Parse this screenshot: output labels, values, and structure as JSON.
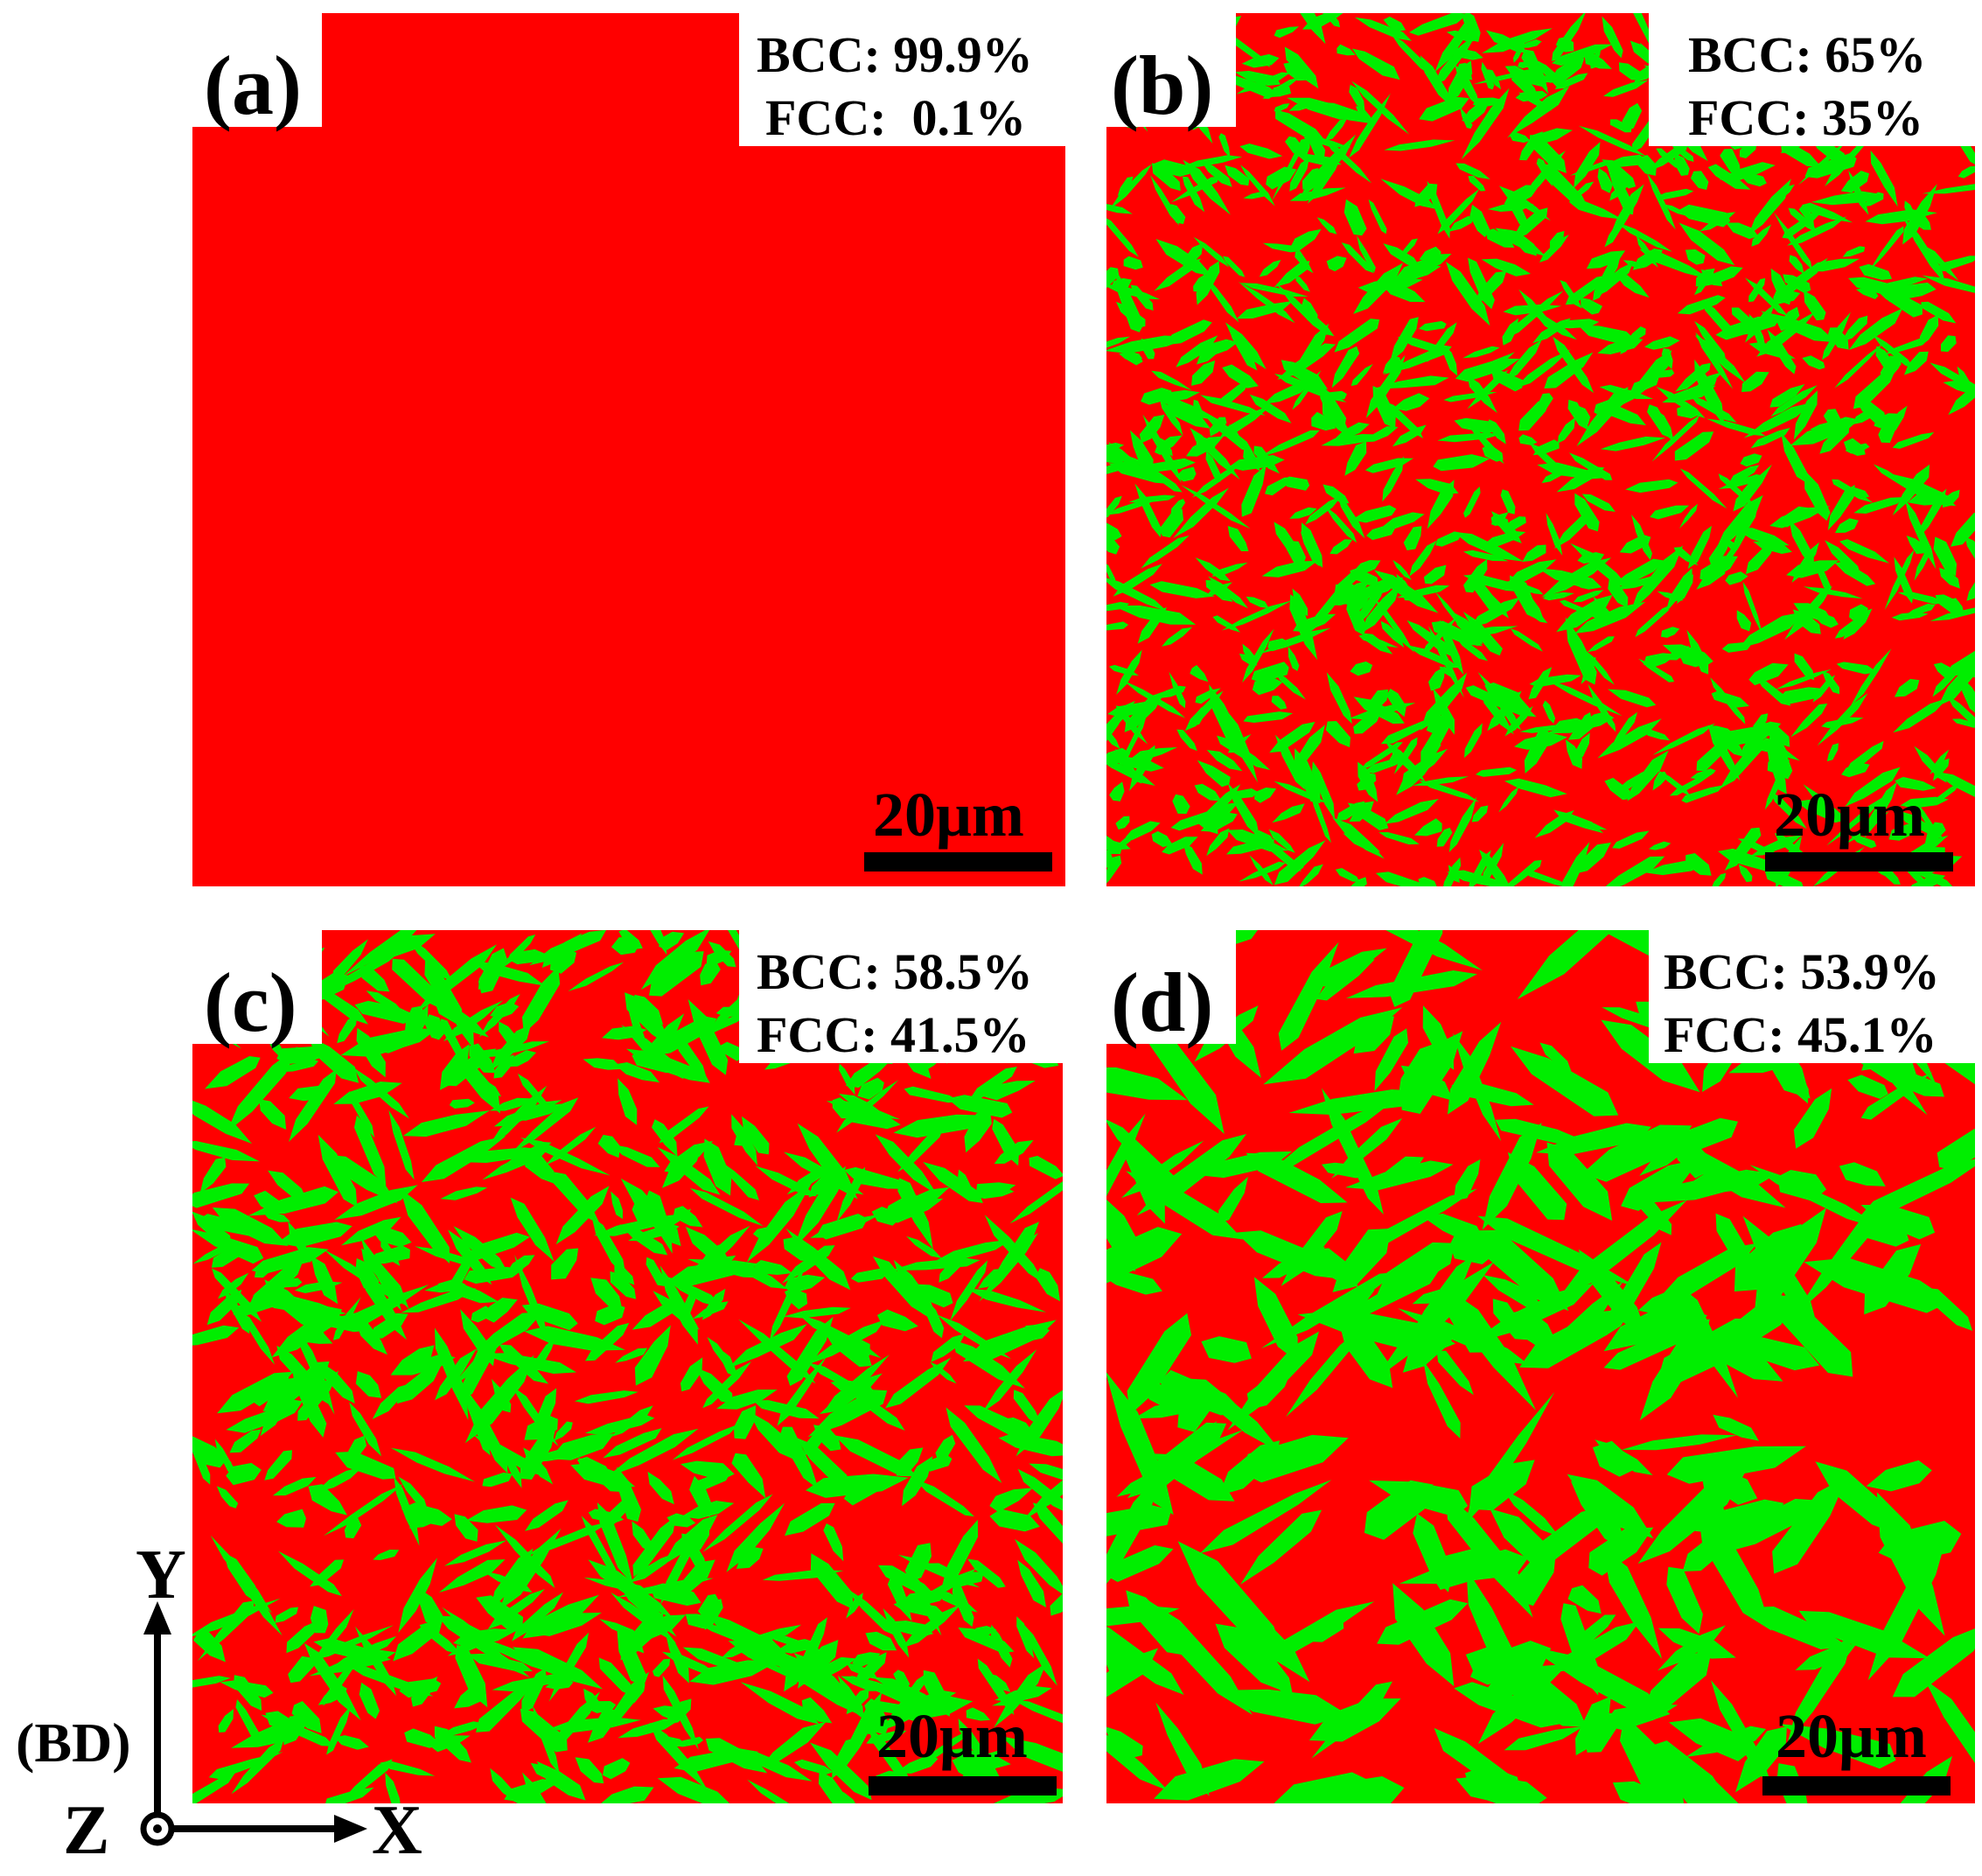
{
  "colors": {
    "bcc": "#ff0000",
    "fcc": "#00ee00",
    "background": "#ffffff"
  },
  "panels": [
    {
      "letter": "(a)",
      "bcc_label": "BCC: 99.9%",
      "fcc_label": "FCC:  0.1%",
      "bcc_fraction": 0.999,
      "fcc_fraction": 0.001,
      "grain_size": 0,
      "scalebar": "20μm"
    },
    {
      "letter": "(b)",
      "bcc_label": "BCC: 65%",
      "fcc_label": "FCC: 35%",
      "bcc_fraction": 0.65,
      "fcc_fraction": 0.35,
      "grain_size": 1,
      "scalebar": "20μm"
    },
    {
      "letter": "(c)",
      "bcc_label": "BCC: 58.5%",
      "fcc_label": "FCC: 41.5%",
      "bcc_fraction": 0.585,
      "fcc_fraction": 0.415,
      "grain_size": 2,
      "scalebar": "20μm"
    },
    {
      "letter": "(d)",
      "bcc_label": "BCC: 53.9%",
      "fcc_label": "FCC: 45.1%",
      "bcc_fraction": 0.539,
      "fcc_fraction": 0.451,
      "grain_size": 3,
      "scalebar": "20μm"
    }
  ],
  "axes": {
    "y": "Y",
    "x": "X",
    "z": "Z",
    "bd": "(BD)"
  }
}
